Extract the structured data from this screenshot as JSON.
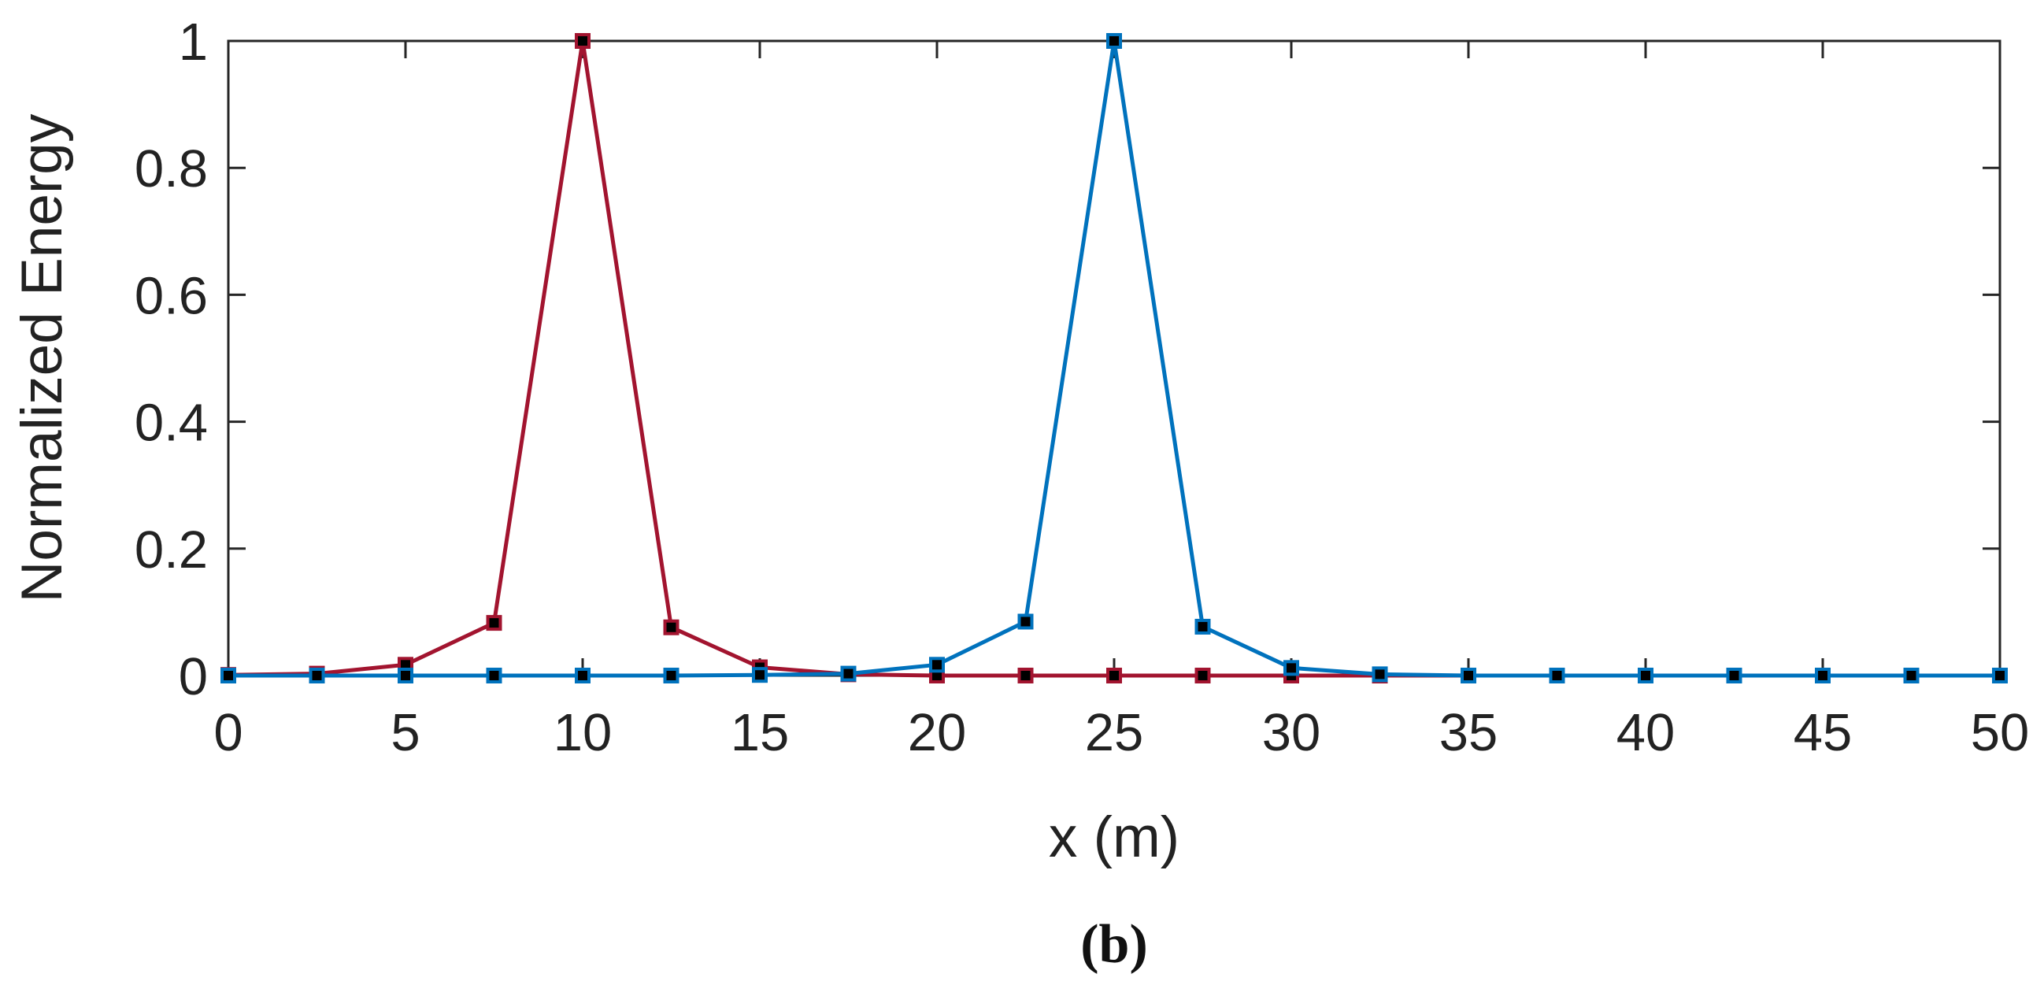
{
  "caption": "(b)",
  "chart_data": {
    "type": "line",
    "title": "",
    "xlabel": "x (m)",
    "ylabel": "Normalized Energy",
    "xlim": [
      0,
      50
    ],
    "ylim": [
      0,
      1
    ],
    "xticks": [
      0,
      5,
      10,
      15,
      20,
      25,
      30,
      35,
      40,
      45,
      50
    ],
    "yticks": [
      0,
      0.2,
      0.4,
      0.6,
      0.8,
      1
    ],
    "ytick_labels": [
      "0",
      "0.2",
      "0.4",
      "0.6",
      "0.8",
      "1"
    ],
    "grid": false,
    "legend": "none",
    "marker": "square",
    "marker_fill": "#000000",
    "x": [
      0,
      2.5,
      5,
      7.5,
      10,
      12.5,
      15,
      17.5,
      20,
      22.5,
      25,
      27.5,
      30,
      32.5,
      35,
      37.5,
      40,
      42.5,
      45,
      47.5,
      50
    ],
    "series": [
      {
        "color": "#A2142F",
        "values": [
          0.001,
          0.003,
          0.017,
          0.083,
          1.0,
          0.076,
          0.013,
          0.002,
          0.0,
          0.0,
          0.0,
          0.0,
          0.0,
          0.0,
          0.0,
          0.0,
          0.0,
          0.0,
          0.0,
          0.0,
          0.0
        ]
      },
      {
        "color": "#0072BD",
        "values": [
          0.0,
          0.0,
          0.0,
          0.0,
          0.0,
          0.0,
          0.001,
          0.003,
          0.017,
          0.085,
          1.0,
          0.077,
          0.012,
          0.002,
          0.0,
          0.0,
          0.0,
          0.0,
          0.0,
          0.0,
          0.0
        ]
      }
    ]
  }
}
